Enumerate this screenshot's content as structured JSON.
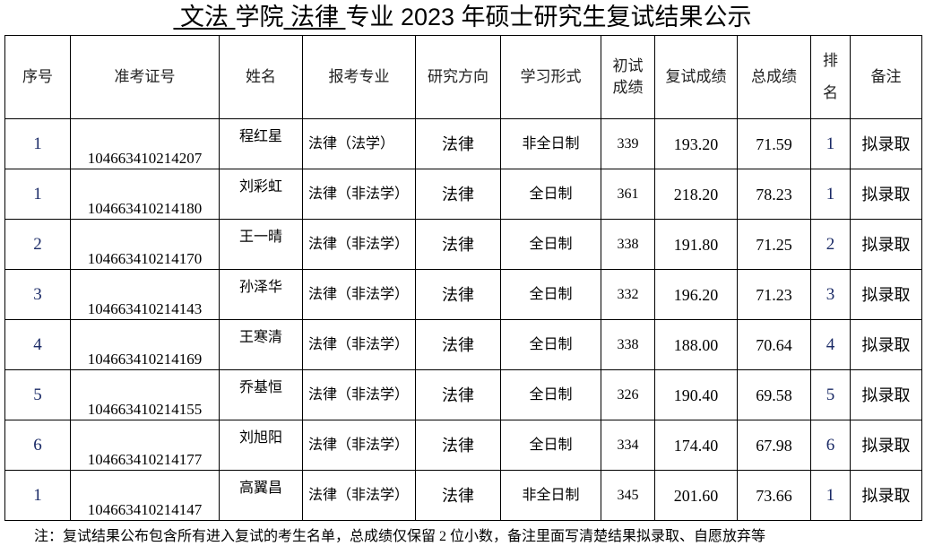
{
  "title": {
    "college": " 文法 ",
    "college_suffix": "学院",
    "major": " 法律 ",
    "rest": "专业 2023 年硕士研究生复试结果公示"
  },
  "headers": [
    "序号",
    "准考证号",
    "姓名",
    "报考专业",
    "研究方向",
    "学习形式",
    "初试成绩",
    "复试成绩",
    "总成绩",
    "排名",
    "备注"
  ],
  "rows": [
    [
      "1",
      "104663410214207",
      "程红星",
      "法律（法学）",
      "法律",
      "非全日制",
      "339",
      "193.20",
      "71.59",
      "1",
      "拟录取"
    ],
    [
      "1",
      "104663410214180",
      "刘彩虹",
      "法律（非法学）",
      "法律",
      "全日制",
      "361",
      "218.20",
      "78.23",
      "1",
      "拟录取"
    ],
    [
      "2",
      "104663410214170",
      "王一晴",
      "法律（非法学）",
      "法律",
      "全日制",
      "338",
      "191.80",
      "71.25",
      "2",
      "拟录取"
    ],
    [
      "3",
      "104663410214143",
      "孙泽华",
      "法律（非法学）",
      "法律",
      "全日制",
      "332",
      "196.20",
      "71.23",
      "3",
      "拟录取"
    ],
    [
      "4",
      "104663410214169",
      "王寒清",
      "法律（非法学）",
      "法律",
      "全日制",
      "338",
      "188.00",
      "70.64",
      "4",
      "拟录取"
    ],
    [
      "5",
      "104663410214155",
      "乔基恒",
      "法律（非法学）",
      "法律",
      "全日制",
      "326",
      "190.40",
      "69.58",
      "5",
      "拟录取"
    ],
    [
      "6",
      "104663410214177",
      "刘旭阳",
      "法律（非法学）",
      "法律",
      "全日制",
      "334",
      "174.40",
      "67.98",
      "6",
      "拟录取"
    ],
    [
      "1",
      "104663410214147",
      "高翼昌",
      "法律（非法学）",
      "法律",
      "非全日制",
      "345",
      "201.60",
      "73.66",
      "1",
      "拟录取"
    ]
  ],
  "note": "注：复试结果公布包含所有进入复试的考生名单，总成绩仅保留 2 位小数，备注里面写清楚结果拟录取、自愿放弃等"
}
